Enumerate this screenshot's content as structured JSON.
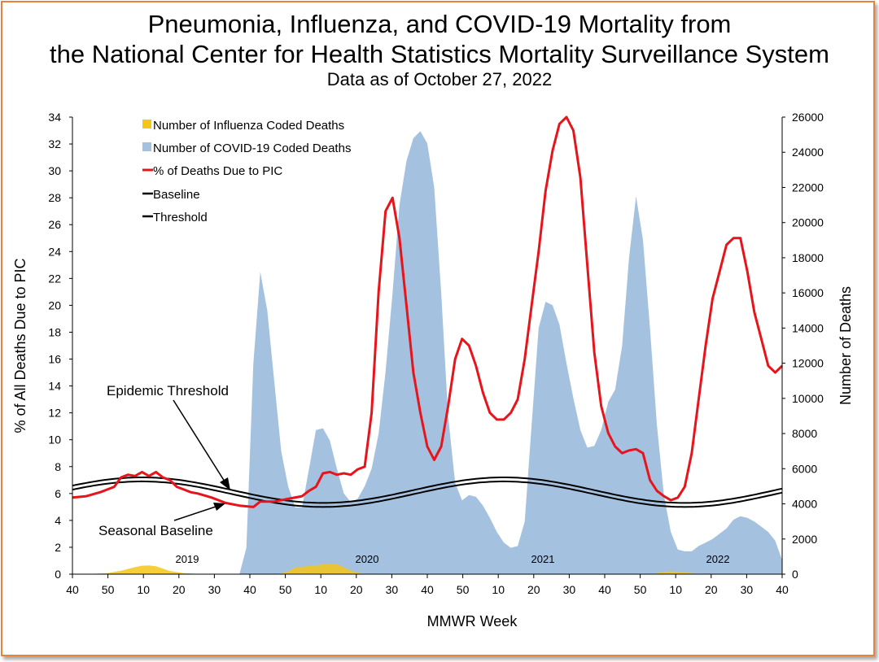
{
  "chart_data": {
    "type": "area",
    "title": "Pneumonia, Influenza, and COVID-19 Mortality from",
    "title_line2": "the National Center for Health Statistics Mortality Surveillance System",
    "subtitle": "Data as of October 27, 2022",
    "xlabel": "MMWR Week",
    "ylabel_left": "% of All Deaths Due to PIC",
    "ylabel_right": "Number of Deaths",
    "ylim_left": [
      0,
      34
    ],
    "ylim_right": [
      0,
      26000
    ],
    "yticks_left": [
      "0",
      "2",
      "4",
      "6",
      "8",
      "10",
      "12",
      "14",
      "16",
      "18",
      "20",
      "22",
      "24",
      "26",
      "28",
      "30",
      "32",
      "34"
    ],
    "yticks_right": [
      "0",
      "2000",
      "4000",
      "6000",
      "8000",
      "10000",
      "12000",
      "14000",
      "16000",
      "18000",
      "20000",
      "22000",
      "24000",
      "26000"
    ],
    "x_tick_labels": [
      "40",
      "50",
      "10",
      "20",
      "30",
      "40",
      "50",
      "10",
      "20",
      "30",
      "40",
      "50",
      "10",
      "20",
      "30",
      "40",
      "50",
      "10",
      "20",
      "30",
      "40"
    ],
    "year_labels": [
      "2019",
      "2020",
      "2021",
      "2022"
    ],
    "legend": [
      {
        "label": "Number of Influenza Coded Deaths",
        "color": "#f5c518"
      },
      {
        "label": "Number of COVID-19 Coded Deaths",
        "color": "#a4c2e0"
      },
      {
        "label": "% of Deaths Due to PIC",
        "color": "#e8141b"
      },
      {
        "label": "Baseline",
        "color": "#000000"
      },
      {
        "label": "Threshold",
        "color": "#000000"
      }
    ],
    "annotations": {
      "threshold": "Epidemic Threshold",
      "baseline": "Seasonal Baseline"
    },
    "series": [
      {
        "name": "Number of COVID-19 Coded Deaths",
        "axis": "right",
        "points": [
          [
            24,
            0
          ],
          [
            25,
            1500
          ],
          [
            26,
            12000
          ],
          [
            27,
            17200
          ],
          [
            28,
            15000
          ],
          [
            29,
            11000
          ],
          [
            30,
            7000
          ],
          [
            31,
            5000
          ],
          [
            32,
            3800
          ],
          [
            33,
            3800
          ],
          [
            34,
            6000
          ],
          [
            35,
            8200
          ],
          [
            36,
            8300
          ],
          [
            37,
            7600
          ],
          [
            38,
            6000
          ],
          [
            39,
            4600
          ],
          [
            40,
            4100
          ],
          [
            41,
            4300
          ],
          [
            42,
            5000
          ],
          [
            43,
            6000
          ],
          [
            44,
            8000
          ],
          [
            45,
            11500
          ],
          [
            46,
            16000
          ],
          [
            47,
            21000
          ],
          [
            48,
            23500
          ],
          [
            49,
            24800
          ],
          [
            50,
            25200
          ],
          [
            51,
            24500
          ],
          [
            52,
            22000
          ],
          [
            53,
            16000
          ],
          [
            54,
            9000
          ],
          [
            55,
            5200
          ],
          [
            56,
            4200
          ],
          [
            57,
            4500
          ],
          [
            58,
            4400
          ],
          [
            59,
            3900
          ],
          [
            60,
            3200
          ],
          [
            61,
            2400
          ],
          [
            62,
            1800
          ],
          [
            63,
            1500
          ],
          [
            64,
            1600
          ],
          [
            65,
            3000
          ],
          [
            66,
            8500
          ],
          [
            67,
            14000
          ],
          [
            68,
            15500
          ],
          [
            69,
            15300
          ],
          [
            70,
            14200
          ],
          [
            71,
            12000
          ],
          [
            72,
            10000
          ],
          [
            73,
            8200
          ],
          [
            74,
            7200
          ],
          [
            75,
            7300
          ],
          [
            76,
            8200
          ],
          [
            77,
            9800
          ],
          [
            78,
            10500
          ],
          [
            79,
            13000
          ],
          [
            80,
            18000
          ],
          [
            81,
            21500
          ],
          [
            82,
            19000
          ],
          [
            83,
            14000
          ],
          [
            84,
            8500
          ],
          [
            85,
            4500
          ],
          [
            86,
            2400
          ],
          [
            87,
            1400
          ],
          [
            88,
            1300
          ],
          [
            89,
            1300
          ],
          [
            90,
            1600
          ],
          [
            91,
            1800
          ],
          [
            92,
            2000
          ],
          [
            93,
            2300
          ],
          [
            94,
            2600
          ],
          [
            95,
            3100
          ],
          [
            96,
            3300
          ],
          [
            97,
            3200
          ],
          [
            98,
            3000
          ],
          [
            99,
            2700
          ],
          [
            100,
            2400
          ],
          [
            101,
            1900
          ],
          [
            102,
            800
          ]
        ]
      },
      {
        "name": "Number of Influenza Coded Deaths",
        "axis": "right",
        "points": [
          [
            0,
            0
          ],
          [
            3,
            20
          ],
          [
            5,
            60
          ],
          [
            7,
            200
          ],
          [
            9,
            400
          ],
          [
            10,
            480
          ],
          [
            11,
            500
          ],
          [
            12,
            450
          ],
          [
            13,
            320
          ],
          [
            14,
            180
          ],
          [
            16,
            60
          ],
          [
            18,
            20
          ],
          [
            20,
            0
          ],
          [
            28,
            0
          ],
          [
            30,
            40
          ],
          [
            31,
            150
          ],
          [
            32,
            380
          ],
          [
            33,
            430
          ],
          [
            34,
            460
          ],
          [
            35,
            500
          ],
          [
            36,
            560
          ],
          [
            37,
            600
          ],
          [
            38,
            560
          ],
          [
            39,
            400
          ],
          [
            40,
            200
          ],
          [
            41,
            80
          ],
          [
            42,
            30
          ],
          [
            43,
            0
          ],
          [
            83,
            0
          ],
          [
            84,
            60
          ],
          [
            85,
            120
          ],
          [
            86,
            160
          ],
          [
            87,
            130
          ],
          [
            88,
            90
          ],
          [
            90,
            40
          ],
          [
            92,
            20
          ],
          [
            102,
            20
          ]
        ]
      },
      {
        "name": "% of Deaths Due to PIC",
        "axis": "left",
        "points": [
          [
            0,
            5.7
          ],
          [
            2,
            5.8
          ],
          [
            4,
            6.1
          ],
          [
            6,
            6.5
          ],
          [
            7,
            7.2
          ],
          [
            8,
            7.4
          ],
          [
            9,
            7.3
          ],
          [
            10,
            7.6
          ],
          [
            11,
            7.3
          ],
          [
            12,
            7.6
          ],
          [
            13,
            7.2
          ],
          [
            14,
            7.0
          ],
          [
            15,
            6.5
          ],
          [
            16,
            6.3
          ],
          [
            17,
            6.1
          ],
          [
            18,
            6.0
          ],
          [
            20,
            5.7
          ],
          [
            22,
            5.3
          ],
          [
            24,
            5.1
          ],
          [
            26,
            5.0
          ],
          [
            27,
            5.4
          ],
          [
            29,
            5.4
          ],
          [
            31,
            5.6
          ],
          [
            33,
            5.8
          ],
          [
            34,
            6.2
          ],
          [
            35,
            6.5
          ],
          [
            36,
            7.5
          ],
          [
            37,
            7.6
          ],
          [
            38,
            7.4
          ],
          [
            39,
            7.5
          ],
          [
            40,
            7.4
          ],
          [
            41,
            7.8
          ],
          [
            42,
            8.0
          ],
          [
            43,
            12.0
          ],
          [
            44,
            21.0
          ],
          [
            45,
            27.0
          ],
          [
            46,
            28.0
          ],
          [
            47,
            25.0
          ],
          [
            48,
            20.0
          ],
          [
            49,
            15.0
          ],
          [
            50,
            12.0
          ],
          [
            51,
            9.5
          ],
          [
            52,
            8.5
          ],
          [
            53,
            9.5
          ],
          [
            54,
            12.5
          ],
          [
            55,
            16.0
          ],
          [
            56,
            17.5
          ],
          [
            57,
            17.0
          ],
          [
            58,
            15.5
          ],
          [
            59,
            13.5
          ],
          [
            60,
            12.0
          ],
          [
            61,
            11.5
          ],
          [
            62,
            11.5
          ],
          [
            63,
            12.0
          ],
          [
            64,
            13.0
          ],
          [
            65,
            16.0
          ],
          [
            66,
            20.0
          ],
          [
            67,
            24.0
          ],
          [
            68,
            28.5
          ],
          [
            69,
            31.5
          ],
          [
            70,
            33.5
          ],
          [
            71,
            34.0
          ],
          [
            72,
            33.0
          ],
          [
            73,
            29.5
          ],
          [
            74,
            23.0
          ],
          [
            75,
            16.5
          ],
          [
            76,
            12.5
          ],
          [
            77,
            10.5
          ],
          [
            78,
            9.5
          ],
          [
            79,
            9.0
          ],
          [
            80,
            9.2
          ],
          [
            81,
            9.3
          ],
          [
            82,
            9.0
          ],
          [
            83,
            7.0
          ],
          [
            84,
            6.2
          ],
          [
            85,
            5.8
          ],
          [
            86,
            5.5
          ],
          [
            87,
            5.7
          ],
          [
            88,
            6.5
          ],
          [
            89,
            9.0
          ],
          [
            90,
            13.0
          ],
          [
            91,
            17.0
          ],
          [
            92,
            20.5
          ],
          [
            93,
            22.5
          ],
          [
            94,
            24.5
          ],
          [
            95,
            25.0
          ],
          [
            96,
            25.0
          ],
          [
            97,
            22.5
          ],
          [
            98,
            19.5
          ],
          [
            99,
            17.5
          ],
          [
            100,
            15.5
          ],
          [
            101,
            15.0
          ],
          [
            102,
            15.5
          ]
        ]
      },
      {
        "name": "Baseline",
        "axis": "left",
        "curve": "sinusoid",
        "mean": 5.95,
        "amplitude": 0.95,
        "period_weeks": 52,
        "peak_week": 10
      },
      {
        "name": "Threshold",
        "axis": "left",
        "curve": "sinusoid",
        "mean": 6.25,
        "amplitude": 0.95,
        "period_weeks": 52,
        "peak_week": 10
      }
    ]
  }
}
